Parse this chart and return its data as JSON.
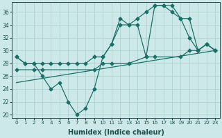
{
  "xlabel": "Humidex (Indice chaleur)",
  "background_color": "#cce8e8",
  "grid_color": "#aacece",
  "line_color": "#1a7068",
  "xlim": [
    -0.5,
    23.5
  ],
  "ylim": [
    19.5,
    37.5
  ],
  "yticks": [
    20,
    22,
    24,
    26,
    28,
    30,
    32,
    34,
    36
  ],
  "xticks": [
    0,
    1,
    2,
    3,
    4,
    5,
    6,
    7,
    8,
    9,
    10,
    11,
    12,
    13,
    14,
    15,
    16,
    17,
    18,
    19,
    20,
    21,
    22,
    23
  ],
  "series_main": [
    29,
    28,
    28,
    26,
    24,
    25,
    22,
    20,
    21,
    24,
    29,
    31,
    35,
    34,
    34,
    29,
    37,
    37,
    36,
    35,
    32,
    30,
    31,
    30
  ],
  "series_upper": [
    29,
    28,
    28,
    28,
    28,
    28,
    28,
    28,
    28,
    29,
    29,
    31,
    34,
    34,
    35,
    36,
    37,
    37,
    37,
    35,
    35,
    30,
    31,
    30
  ],
  "series_lower_diag": [
    [
      0,
      25
    ],
    [
      23,
      30
    ]
  ],
  "series_mid": [
    [
      0,
      27
    ],
    [
      2,
      27
    ],
    [
      3,
      27
    ],
    [
      9,
      27
    ],
    [
      10,
      28
    ],
    [
      11,
      28
    ],
    [
      13,
      28
    ],
    [
      15,
      29
    ],
    [
      16,
      29
    ],
    [
      19,
      29
    ],
    [
      20,
      30
    ],
    [
      21,
      30
    ],
    [
      22,
      31
    ],
    [
      23,
      30
    ]
  ]
}
